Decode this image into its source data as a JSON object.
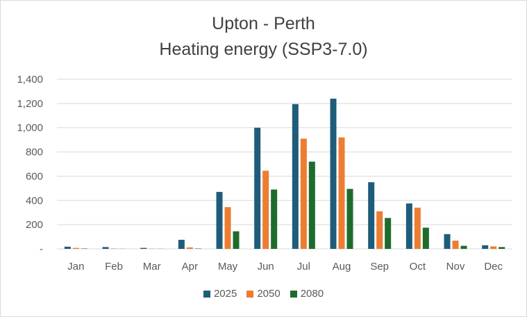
{
  "chart_data": {
    "type": "bar",
    "title_line1": "Upton - Perth",
    "title_line2": "Heating energy (SSP3-7.0)",
    "xlabel": "",
    "ylabel": "",
    "ylim": [
      0,
      1400
    ],
    "yticks": [
      0,
      200,
      400,
      600,
      800,
      1000,
      1200,
      1400
    ],
    "ytick_labels": [
      "-",
      "200",
      "400",
      "600",
      "800",
      "1,000",
      "1,200",
      "1,400"
    ],
    "grid": true,
    "legend_position": "bottom",
    "categories": [
      "Jan",
      "Feb",
      "Mar",
      "Apr",
      "May",
      "Jun",
      "Jul",
      "Aug",
      "Sep",
      "Oct",
      "Nov",
      "Dec"
    ],
    "series": [
      {
        "name": "2025",
        "color": "#1f5c7a",
        "values": [
          18,
          15,
          8,
          75,
          470,
          1000,
          1195,
          1240,
          550,
          375,
          122,
          30
        ]
      },
      {
        "name": "2050",
        "color": "#ed7d31",
        "values": [
          8,
          3,
          2,
          12,
          345,
          645,
          910,
          920,
          310,
          340,
          68,
          20
        ]
      },
      {
        "name": "2080",
        "color": "#1e6b2e",
        "values": [
          3,
          1,
          1,
          3,
          145,
          490,
          720,
          495,
          255,
          175,
          25,
          15
        ]
      }
    ]
  }
}
